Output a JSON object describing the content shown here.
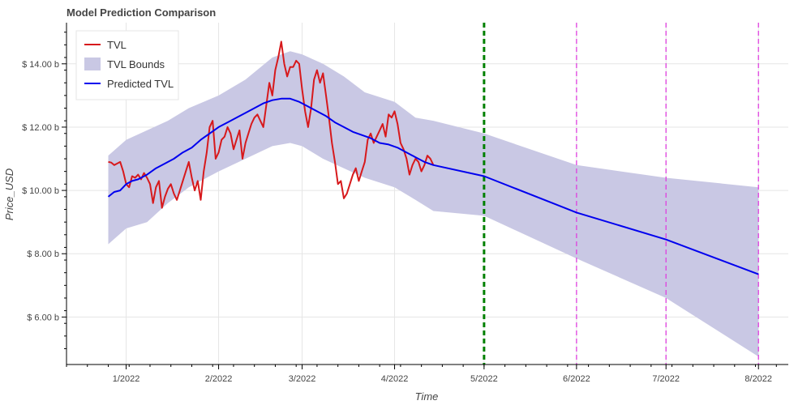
{
  "chart_data": {
    "type": "line",
    "title": "Model Prediction Comparison",
    "xlabel": "Time",
    "ylabel": "Price_USD",
    "x_ticks": [
      {
        "label": "1/2022",
        "date": "2022-01-01"
      },
      {
        "label": "2/2022",
        "date": "2022-02-01"
      },
      {
        "label": "3/2022",
        "date": "2022-03-01"
      },
      {
        "label": "4/2022",
        "date": "2022-04-01"
      },
      {
        "label": "5/2022",
        "date": "2022-05-01"
      },
      {
        "label": "6/2022",
        "date": "2022-06-01"
      },
      {
        "label": "7/2022",
        "date": "2022-07-01"
      },
      {
        "label": "8/2022",
        "date": "2022-08-01"
      }
    ],
    "y_ticks": [
      {
        "label": "$ 6.00 b",
        "value": 6
      },
      {
        "label": "$ 8.00 b",
        "value": 8
      },
      {
        "label": "$ 10.00 b",
        "value": 10
      },
      {
        "label": "$ 12.00 b",
        "value": 12
      },
      {
        "label": "$ 14.00 b",
        "value": 14
      }
    ],
    "xlim": [
      "2021-12-12",
      "2022-08-11"
    ],
    "ylim": [
      4.5,
      15.3
    ],
    "grid": true,
    "legend_position": "top-left",
    "legend": [
      {
        "key": "tvl",
        "label": "TVL"
      },
      {
        "key": "bounds",
        "label": "TVL Bounds"
      },
      {
        "key": "predicted",
        "label": "Predicted TVL"
      }
    ],
    "colors": {
      "tvl": "#d7191c",
      "predicted": "#0000ee",
      "bounds": "#c9c8e4",
      "split_line": "#008000",
      "forecast_lines": "#e040e0",
      "grid": "#e5e5e5"
    },
    "split_line_date": "2022-05-01",
    "forecast_line_dates": [
      "2022-06-01",
      "2022-07-01",
      "2022-08-01"
    ],
    "series": [
      {
        "key": "tvl",
        "name": "TVL",
        "points": [
          [
            "2021-12-26",
            10.9
          ],
          [
            "2021-12-27",
            10.88
          ],
          [
            "2021-12-28",
            10.8
          ],
          [
            "2021-12-29",
            10.85
          ],
          [
            "2021-12-30",
            10.9
          ],
          [
            "2021-12-31",
            10.6
          ],
          [
            "2022-01-01",
            10.2
          ],
          [
            "2022-01-02",
            10.1
          ],
          [
            "2022-01-03",
            10.45
          ],
          [
            "2022-01-04",
            10.4
          ],
          [
            "2022-01-05",
            10.5
          ],
          [
            "2022-01-06",
            10.35
          ],
          [
            "2022-01-07",
            10.55
          ],
          [
            "2022-01-08",
            10.4
          ],
          [
            "2022-01-09",
            10.2
          ],
          [
            "2022-01-10",
            9.6
          ],
          [
            "2022-01-11",
            10.1
          ],
          [
            "2022-01-12",
            10.3
          ],
          [
            "2022-01-13",
            9.45
          ],
          [
            "2022-01-14",
            9.8
          ],
          [
            "2022-01-15",
            10.05
          ],
          [
            "2022-01-16",
            10.2
          ],
          [
            "2022-01-17",
            9.9
          ],
          [
            "2022-01-18",
            9.7
          ],
          [
            "2022-01-19",
            10.0
          ],
          [
            "2022-01-20",
            10.3
          ],
          [
            "2022-01-21",
            10.6
          ],
          [
            "2022-01-22",
            10.9
          ],
          [
            "2022-01-23",
            10.4
          ],
          [
            "2022-01-24",
            10.0
          ],
          [
            "2022-01-25",
            10.3
          ],
          [
            "2022-01-26",
            9.7
          ],
          [
            "2022-01-27",
            10.6
          ],
          [
            "2022-01-28",
            11.2
          ],
          [
            "2022-01-29",
            12.0
          ],
          [
            "2022-01-30",
            12.2
          ],
          [
            "2022-01-31",
            11.0
          ],
          [
            "2022-02-01",
            11.2
          ],
          [
            "2022-02-02",
            11.6
          ],
          [
            "2022-02-03",
            11.7
          ],
          [
            "2022-02-04",
            12.0
          ],
          [
            "2022-02-05",
            11.8
          ],
          [
            "2022-02-06",
            11.3
          ],
          [
            "2022-02-07",
            11.6
          ],
          [
            "2022-02-08",
            11.9
          ],
          [
            "2022-02-09",
            11.0
          ],
          [
            "2022-02-10",
            11.5
          ],
          [
            "2022-02-11",
            11.8
          ],
          [
            "2022-02-12",
            12.1
          ],
          [
            "2022-02-13",
            12.3
          ],
          [
            "2022-02-14",
            12.4
          ],
          [
            "2022-02-15",
            12.2
          ],
          [
            "2022-02-16",
            12.0
          ],
          [
            "2022-02-17",
            12.7
          ],
          [
            "2022-02-18",
            13.4
          ],
          [
            "2022-02-19",
            13.0
          ],
          [
            "2022-02-20",
            13.8
          ],
          [
            "2022-02-21",
            14.2
          ],
          [
            "2022-02-22",
            14.7
          ],
          [
            "2022-02-23",
            14.0
          ],
          [
            "2022-02-24",
            13.6
          ],
          [
            "2022-02-25",
            13.9
          ],
          [
            "2022-02-26",
            13.9
          ],
          [
            "2022-02-27",
            14.1
          ],
          [
            "2022-02-28",
            14.0
          ],
          [
            "2022-03-01",
            13.2
          ],
          [
            "2022-03-02",
            12.5
          ],
          [
            "2022-03-03",
            12.0
          ],
          [
            "2022-03-04",
            12.6
          ],
          [
            "2022-03-05",
            13.5
          ],
          [
            "2022-03-06",
            13.8
          ],
          [
            "2022-03-07",
            13.4
          ],
          [
            "2022-03-08",
            13.7
          ],
          [
            "2022-03-09",
            13.0
          ],
          [
            "2022-03-10",
            12.3
          ],
          [
            "2022-03-11",
            11.5
          ],
          [
            "2022-03-12",
            10.9
          ],
          [
            "2022-03-13",
            10.2
          ],
          [
            "2022-03-14",
            10.3
          ],
          [
            "2022-03-15",
            9.75
          ],
          [
            "2022-03-16",
            9.9
          ],
          [
            "2022-03-17",
            10.2
          ],
          [
            "2022-03-18",
            10.5
          ],
          [
            "2022-03-19",
            10.7
          ],
          [
            "2022-03-20",
            10.3
          ],
          [
            "2022-03-21",
            10.6
          ],
          [
            "2022-03-22",
            10.9
          ],
          [
            "2022-03-23",
            11.6
          ],
          [
            "2022-03-24",
            11.8
          ],
          [
            "2022-03-25",
            11.5
          ],
          [
            "2022-03-26",
            11.7
          ],
          [
            "2022-03-27",
            11.9
          ],
          [
            "2022-03-28",
            12.1
          ],
          [
            "2022-03-29",
            11.7
          ],
          [
            "2022-03-30",
            12.4
          ],
          [
            "2022-03-31",
            12.3
          ],
          [
            "2022-04-01",
            12.5
          ],
          [
            "2022-04-02",
            12.1
          ],
          [
            "2022-04-03",
            11.5
          ],
          [
            "2022-04-04",
            11.3
          ],
          [
            "2022-04-05",
            11.0
          ],
          [
            "2022-04-06",
            10.5
          ],
          [
            "2022-04-07",
            10.8
          ],
          [
            "2022-04-08",
            11.0
          ],
          [
            "2022-04-09",
            10.9
          ],
          [
            "2022-04-10",
            10.6
          ],
          [
            "2022-04-11",
            10.8
          ],
          [
            "2022-04-12",
            11.1
          ],
          [
            "2022-04-13",
            11.0
          ],
          [
            "2022-04-14",
            10.8
          ]
        ]
      },
      {
        "key": "predicted",
        "name": "Predicted TVL",
        "points": [
          [
            "2021-12-26",
            9.8
          ],
          [
            "2021-12-28",
            9.95
          ],
          [
            "2021-12-30",
            10.0
          ],
          [
            "2022-01-01",
            10.2
          ],
          [
            "2022-01-03",
            10.3
          ],
          [
            "2022-01-05",
            10.35
          ],
          [
            "2022-01-08",
            10.5
          ],
          [
            "2022-01-11",
            10.7
          ],
          [
            "2022-01-14",
            10.85
          ],
          [
            "2022-01-17",
            11.0
          ],
          [
            "2022-01-20",
            11.2
          ],
          [
            "2022-01-23",
            11.35
          ],
          [
            "2022-01-26",
            11.6
          ],
          [
            "2022-01-29",
            11.8
          ],
          [
            "2022-02-01",
            12.0
          ],
          [
            "2022-02-04",
            12.15
          ],
          [
            "2022-02-07",
            12.3
          ],
          [
            "2022-02-10",
            12.45
          ],
          [
            "2022-02-13",
            12.6
          ],
          [
            "2022-02-16",
            12.75
          ],
          [
            "2022-02-19",
            12.85
          ],
          [
            "2022-02-22",
            12.9
          ],
          [
            "2022-02-25",
            12.9
          ],
          [
            "2022-02-28",
            12.8
          ],
          [
            "2022-03-03",
            12.65
          ],
          [
            "2022-03-06",
            12.5
          ],
          [
            "2022-03-09",
            12.35
          ],
          [
            "2022-03-12",
            12.15
          ],
          [
            "2022-03-15",
            12.0
          ],
          [
            "2022-03-18",
            11.85
          ],
          [
            "2022-03-21",
            11.75
          ],
          [
            "2022-03-24",
            11.65
          ],
          [
            "2022-03-27",
            11.5
          ],
          [
            "2022-03-30",
            11.45
          ],
          [
            "2022-04-02",
            11.35
          ],
          [
            "2022-04-05",
            11.2
          ],
          [
            "2022-04-08",
            11.05
          ],
          [
            "2022-04-11",
            10.9
          ],
          [
            "2022-04-14",
            10.8
          ],
          [
            "2022-05-01",
            10.45
          ],
          [
            "2022-06-01",
            9.3
          ],
          [
            "2022-07-01",
            8.45
          ],
          [
            "2022-08-01",
            7.35
          ]
        ]
      }
    ],
    "bounds": {
      "name": "TVL Bounds",
      "upper": [
        [
          "2021-12-26",
          11.1
        ],
        [
          "2022-01-01",
          11.6
        ],
        [
          "2022-01-08",
          11.9
        ],
        [
          "2022-01-15",
          12.2
        ],
        [
          "2022-01-22",
          12.6
        ],
        [
          "2022-02-01",
          13.0
        ],
        [
          "2022-02-10",
          13.5
        ],
        [
          "2022-02-19",
          14.2
        ],
        [
          "2022-02-25",
          14.4
        ],
        [
          "2022-03-01",
          14.3
        ],
        [
          "2022-03-08",
          14.0
        ],
        [
          "2022-03-15",
          13.6
        ],
        [
          "2022-03-22",
          13.1
        ],
        [
          "2022-04-01",
          12.8
        ],
        [
          "2022-04-08",
          12.3
        ],
        [
          "2022-04-14",
          12.2
        ],
        [
          "2022-05-01",
          11.8
        ],
        [
          "2022-06-01",
          10.8
        ],
        [
          "2022-07-01",
          10.4
        ],
        [
          "2022-08-01",
          10.1
        ]
      ],
      "lower": [
        [
          "2021-12-26",
          8.3
        ],
        [
          "2022-01-01",
          8.8
        ],
        [
          "2022-01-08",
          9.0
        ],
        [
          "2022-01-15",
          9.6
        ],
        [
          "2022-01-22",
          10.1
        ],
        [
          "2022-02-01",
          10.6
        ],
        [
          "2022-02-10",
          11.0
        ],
        [
          "2022-02-19",
          11.4
        ],
        [
          "2022-02-25",
          11.5
        ],
        [
          "2022-03-01",
          11.4
        ],
        [
          "2022-03-08",
          11.0
        ],
        [
          "2022-03-15",
          10.7
        ],
        [
          "2022-03-22",
          10.4
        ],
        [
          "2022-04-01",
          10.1
        ],
        [
          "2022-04-08",
          9.7
        ],
        [
          "2022-04-14",
          9.35
        ],
        [
          "2022-05-01",
          9.2
        ],
        [
          "2022-06-01",
          7.85
        ],
        [
          "2022-07-01",
          6.6
        ],
        [
          "2022-08-01",
          4.75
        ]
      ]
    }
  }
}
